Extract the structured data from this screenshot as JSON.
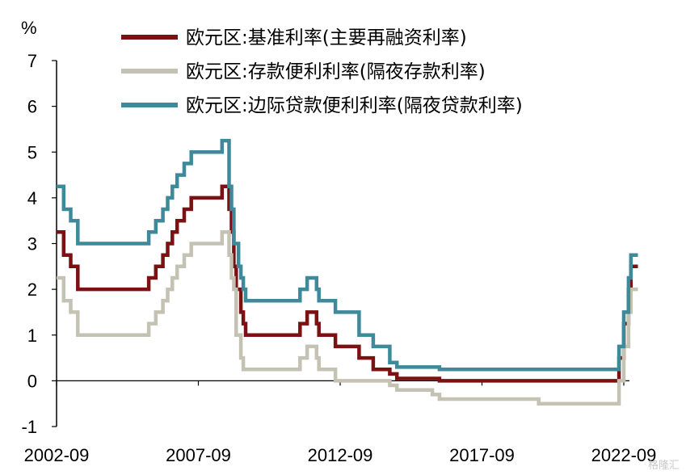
{
  "chart_data": {
    "type": "line",
    "title": "",
    "ylabel": "%",
    "xlabel": "",
    "ylim": [
      -1,
      7
    ],
    "xlim": [
      "2002-09",
      "2023-03"
    ],
    "yticks": [
      "-1",
      "0",
      "1",
      "2",
      "3",
      "4",
      "5",
      "6",
      "7"
    ],
    "xticks": [
      "2002-09",
      "2007-09",
      "2012-09",
      "2017-09",
      "2022-09"
    ],
    "grid": false,
    "legend_position": "top",
    "series": [
      {
        "name": "欧元区:基准利率(主要再融资利率)",
        "color": "#7b1113",
        "points": [
          [
            "2002-09",
            3.25
          ],
          [
            "2002-12",
            2.75
          ],
          [
            "2003-03",
            2.5
          ],
          [
            "2003-06",
            2.0
          ],
          [
            "2005-12",
            2.25
          ],
          [
            "2006-03",
            2.5
          ],
          [
            "2006-06",
            2.75
          ],
          [
            "2006-08",
            3.0
          ],
          [
            "2006-10",
            3.25
          ],
          [
            "2006-12",
            3.5
          ],
          [
            "2007-03",
            3.75
          ],
          [
            "2007-06",
            4.0
          ],
          [
            "2008-07",
            4.25
          ],
          [
            "2008-10",
            3.75
          ],
          [
            "2008-11",
            3.25
          ],
          [
            "2008-12",
            2.5
          ],
          [
            "2009-01",
            2.0
          ],
          [
            "2009-03",
            1.5
          ],
          [
            "2009-04",
            1.25
          ],
          [
            "2009-05",
            1.0
          ],
          [
            "2011-04",
            1.25
          ],
          [
            "2011-07",
            1.5
          ],
          [
            "2011-11",
            1.25
          ],
          [
            "2011-12",
            1.0
          ],
          [
            "2012-07",
            0.75
          ],
          [
            "2013-05",
            0.5
          ],
          [
            "2013-11",
            0.25
          ],
          [
            "2014-06",
            0.15
          ],
          [
            "2014-09",
            0.05
          ],
          [
            "2016-03",
            0.0
          ],
          [
            "2022-07",
            0.5
          ],
          [
            "2022-09",
            1.25
          ],
          [
            "2022-11",
            2.0
          ],
          [
            "2022-12",
            2.5
          ]
        ]
      },
      {
        "name": "欧元区:存款便利利率(隔夜存款利率)",
        "color": "#c4c2b3",
        "points": [
          [
            "2002-09",
            2.25
          ],
          [
            "2002-12",
            1.75
          ],
          [
            "2003-03",
            1.5
          ],
          [
            "2003-06",
            1.0
          ],
          [
            "2005-12",
            1.25
          ],
          [
            "2006-03",
            1.5
          ],
          [
            "2006-06",
            1.75
          ],
          [
            "2006-08",
            2.0
          ],
          [
            "2006-10",
            2.25
          ],
          [
            "2006-12",
            2.5
          ],
          [
            "2007-03",
            2.75
          ],
          [
            "2007-06",
            3.0
          ],
          [
            "2008-07",
            3.25
          ],
          [
            "2008-10",
            2.75
          ],
          [
            "2008-11",
            2.25
          ],
          [
            "2008-12",
            2.0
          ],
          [
            "2009-01",
            1.0
          ],
          [
            "2009-03",
            0.5
          ],
          [
            "2009-04",
            0.25
          ],
          [
            "2011-04",
            0.5
          ],
          [
            "2011-07",
            0.75
          ],
          [
            "2011-11",
            0.5
          ],
          [
            "2011-12",
            0.25
          ],
          [
            "2012-07",
            0.0
          ],
          [
            "2014-06",
            -0.1
          ],
          [
            "2014-09",
            -0.2
          ],
          [
            "2015-12",
            -0.3
          ],
          [
            "2016-03",
            -0.4
          ],
          [
            "2019-09",
            -0.5
          ],
          [
            "2022-07",
            0.0
          ],
          [
            "2022-09",
            0.75
          ],
          [
            "2022-11",
            1.5
          ],
          [
            "2022-12",
            2.0
          ]
        ]
      },
      {
        "name": "欧元区:边际贷款便利利率(隔夜贷款利率)",
        "color": "#3e8a9b",
        "points": [
          [
            "2002-09",
            4.25
          ],
          [
            "2002-12",
            3.75
          ],
          [
            "2003-03",
            3.5
          ],
          [
            "2003-06",
            3.0
          ],
          [
            "2005-12",
            3.25
          ],
          [
            "2006-03",
            3.5
          ],
          [
            "2006-06",
            3.75
          ],
          [
            "2006-08",
            4.0
          ],
          [
            "2006-10",
            4.25
          ],
          [
            "2006-12",
            4.5
          ],
          [
            "2007-03",
            4.75
          ],
          [
            "2007-06",
            5.0
          ],
          [
            "2008-07",
            5.25
          ],
          [
            "2008-10",
            4.25
          ],
          [
            "2008-11",
            3.75
          ],
          [
            "2008-12",
            3.0
          ],
          [
            "2009-01",
            3.0
          ],
          [
            "2009-02",
            2.5
          ],
          [
            "2009-03",
            2.25
          ],
          [
            "2009-04",
            2.0
          ],
          [
            "2009-05",
            1.75
          ],
          [
            "2011-04",
            2.0
          ],
          [
            "2011-07",
            2.25
          ],
          [
            "2011-11",
            2.0
          ],
          [
            "2011-12",
            1.75
          ],
          [
            "2012-07",
            1.5
          ],
          [
            "2013-05",
            1.0
          ],
          [
            "2013-11",
            0.75
          ],
          [
            "2014-06",
            0.4
          ],
          [
            "2014-09",
            0.3
          ],
          [
            "2016-03",
            0.25
          ],
          [
            "2022-07",
            0.75
          ],
          [
            "2022-09",
            1.5
          ],
          [
            "2022-11",
            2.25
          ],
          [
            "2022-12",
            2.75
          ]
        ]
      }
    ]
  },
  "watermark": "格隆汇"
}
